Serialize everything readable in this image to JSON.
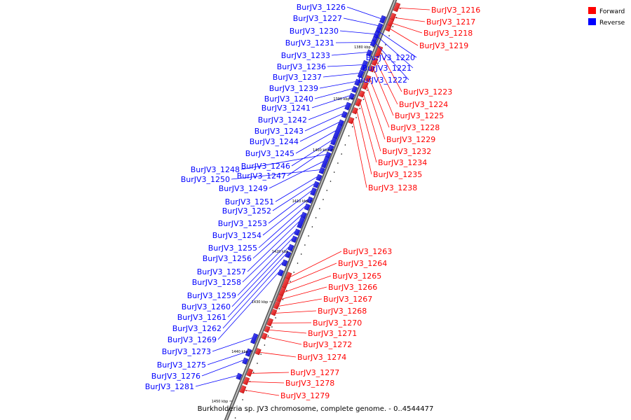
{
  "caption": "Burkholderia sp. JV3 chromosome, complete genome. - 0..4544477",
  "legend": [
    {
      "label": "Forward",
      "color": "#ff0000"
    },
    {
      "label": "Reverse",
      "color": "#0000ff"
    }
  ],
  "ticks": [
    "1380 kbp",
    "1390 kbp",
    "1400 kbp",
    "1410 kbp",
    "1420 kbp",
    "1430 kbp",
    "1440 kbp",
    "1450 kbp"
  ],
  "features": [
    {
      "name": "BurJV3_1216",
      "strand": "forward"
    },
    {
      "name": "BurJV3_1217",
      "strand": "forward"
    },
    {
      "name": "BurJV3_1218",
      "strand": "forward"
    },
    {
      "name": "BurJV3_1219",
      "strand": "forward"
    },
    {
      "name": "BurJV3_1220",
      "strand": "reverse"
    },
    {
      "name": "BurJV3_1221",
      "strand": "reverse"
    },
    {
      "name": "BurJV3_1222",
      "strand": "reverse"
    },
    {
      "name": "BurJV3_1223",
      "strand": "forward"
    },
    {
      "name": "BurJV3_1224",
      "strand": "forward"
    },
    {
      "name": "BurJV3_1225",
      "strand": "forward"
    },
    {
      "name": "BurJV3_1226",
      "strand": "reverse"
    },
    {
      "name": "BurJV3_1227",
      "strand": "reverse"
    },
    {
      "name": "BurJV3_1228",
      "strand": "forward"
    },
    {
      "name": "BurJV3_1229",
      "strand": "forward"
    },
    {
      "name": "BurJV3_1230",
      "strand": "reverse"
    },
    {
      "name": "BurJV3_1231",
      "strand": "reverse"
    },
    {
      "name": "BurJV3_1232",
      "strand": "forward"
    },
    {
      "name": "BurJV3_1233",
      "strand": "reverse"
    },
    {
      "name": "BurJV3_1234",
      "strand": "forward"
    },
    {
      "name": "BurJV3_1235",
      "strand": "forward"
    },
    {
      "name": "BurJV3_1236",
      "strand": "reverse"
    },
    {
      "name": "BurJV3_1237",
      "strand": "reverse"
    },
    {
      "name": "BurJV3_1238",
      "strand": "forward"
    },
    {
      "name": "BurJV3_1239",
      "strand": "reverse"
    },
    {
      "name": "BurJV3_1240",
      "strand": "reverse"
    },
    {
      "name": "BurJV3_1241",
      "strand": "reverse"
    },
    {
      "name": "BurJV3_1242",
      "strand": "reverse"
    },
    {
      "name": "BurJV3_1243",
      "strand": "reverse"
    },
    {
      "name": "BurJV3_1244",
      "strand": "reverse"
    },
    {
      "name": "BurJV3_1245",
      "strand": "reverse"
    },
    {
      "name": "BurJV3_1246",
      "strand": "reverse"
    },
    {
      "name": "BurJV3_1247",
      "strand": "reverse"
    },
    {
      "name": "BurJV3_1248",
      "strand": "reverse"
    },
    {
      "name": "BurJV3_1249",
      "strand": "reverse"
    },
    {
      "name": "BurJV3_1250",
      "strand": "reverse"
    },
    {
      "name": "BurJV3_1251",
      "strand": "reverse"
    },
    {
      "name": "BurJV3_1252",
      "strand": "reverse"
    },
    {
      "name": "BurJV3_1253",
      "strand": "reverse"
    },
    {
      "name": "BurJV3_1254",
      "strand": "reverse"
    },
    {
      "name": "BurJV3_1255",
      "strand": "reverse"
    },
    {
      "name": "BurJV3_1256",
      "strand": "reverse"
    },
    {
      "name": "BurJV3_1257",
      "strand": "reverse"
    },
    {
      "name": "BurJV3_1258",
      "strand": "reverse"
    },
    {
      "name": "BurJV3_1259",
      "strand": "reverse"
    },
    {
      "name": "BurJV3_1260",
      "strand": "reverse"
    },
    {
      "name": "BurJV3_1261",
      "strand": "reverse"
    },
    {
      "name": "BurJV3_1262",
      "strand": "reverse"
    },
    {
      "name": "BurJV3_1263",
      "strand": "forward"
    },
    {
      "name": "BurJV3_1264",
      "strand": "forward"
    },
    {
      "name": "BurJV3_1265",
      "strand": "forward"
    },
    {
      "name": "BurJV3_1266",
      "strand": "forward"
    },
    {
      "name": "BurJV3_1267",
      "strand": "forward"
    },
    {
      "name": "BurJV3_1268",
      "strand": "forward"
    },
    {
      "name": "BurJV3_1269",
      "strand": "reverse"
    },
    {
      "name": "BurJV3_1270",
      "strand": "forward"
    },
    {
      "name": "BurJV3_1271",
      "strand": "forward"
    },
    {
      "name": "BurJV3_1272",
      "strand": "forward"
    },
    {
      "name": "BurJV3_1273",
      "strand": "reverse"
    },
    {
      "name": "BurJV3_1274",
      "strand": "forward"
    },
    {
      "name": "BurJV3_1275",
      "strand": "reverse"
    },
    {
      "name": "BurJV3_1276",
      "strand": "reverse"
    },
    {
      "name": "BurJV3_1277",
      "strand": "forward"
    },
    {
      "name": "BurJV3_1278",
      "strand": "forward"
    },
    {
      "name": "BurJV3_1279",
      "strand": "forward"
    },
    {
      "name": "BurJV3_1281",
      "strand": "reverse"
    }
  ]
}
